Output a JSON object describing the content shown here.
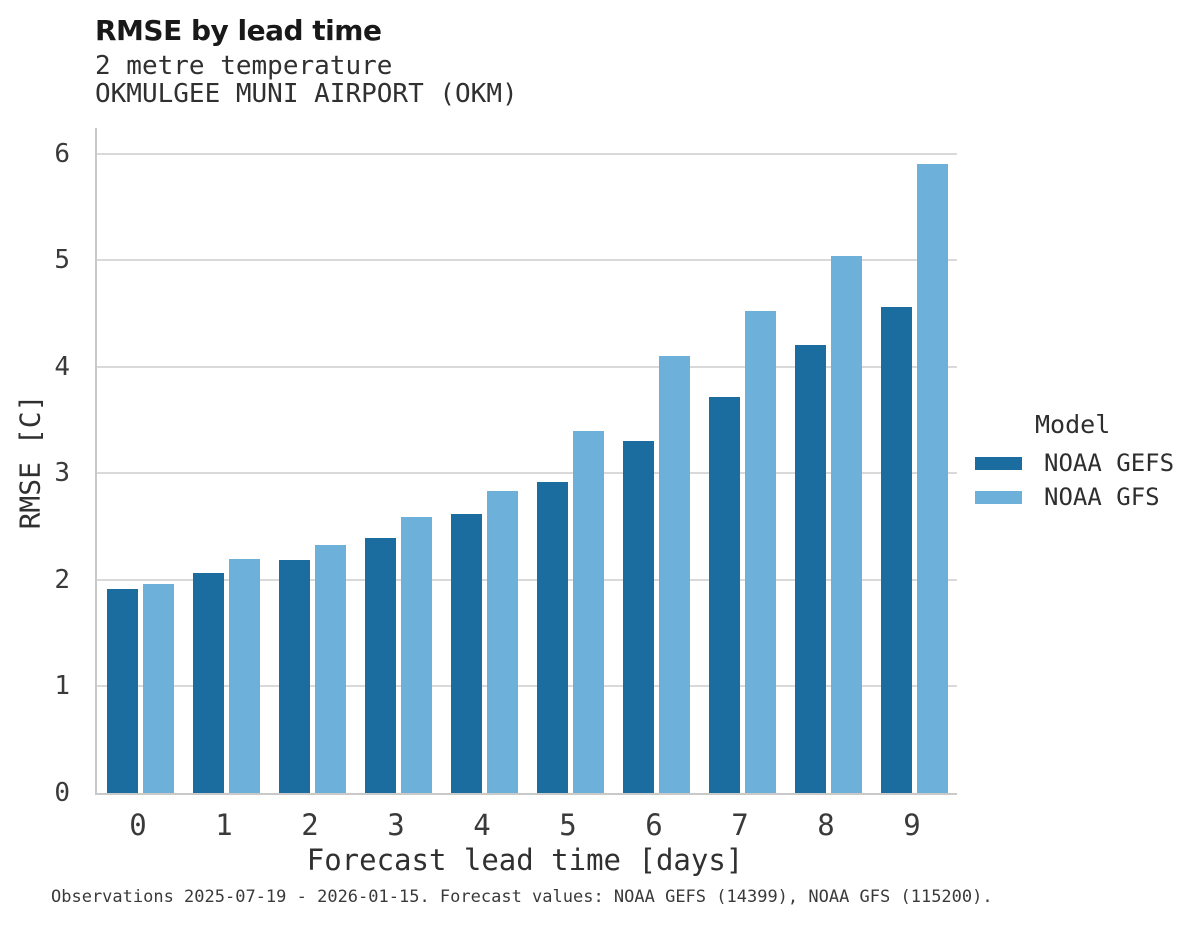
{
  "chart_data": {
    "type": "bar",
    "title": "RMSE by lead time",
    "subtitle1": "2 metre temperature",
    "subtitle2": "OKMULGEE MUNI AIRPORT (OKM)",
    "xlabel": "Forecast lead time [days]",
    "ylabel": "RMSE [C]",
    "legend_title": "Model",
    "legend_position": "right",
    "grid": "horizontal",
    "categories": [
      "0",
      "1",
      "2",
      "3",
      "4",
      "5",
      "6",
      "7",
      "8",
      "9"
    ],
    "yticks": [
      0,
      1,
      2,
      3,
      4,
      5,
      6
    ],
    "ylim": [
      0,
      6.24
    ],
    "series": [
      {
        "name": "NOAA GEFS",
        "color": "#1a6d9e",
        "values": [
          1.91,
          2.06,
          2.19,
          2.39,
          2.62,
          2.92,
          3.3,
          3.72,
          4.2,
          4.56
        ]
      },
      {
        "name": "NOAA GFS",
        "color": "#6db1da",
        "values": [
          1.96,
          2.2,
          2.33,
          2.59,
          2.83,
          3.4,
          4.1,
          4.52,
          5.04,
          5.9
        ]
      }
    ],
    "caption": "Observations 2025-07-19 - 2026-01-15. Forecast values: NOAA GEFS (14399), NOAA GFS (115200)."
  },
  "colors": {
    "series_dark": "#1a6d9e",
    "series_light": "#6db1da",
    "gridline": "#d9d9d9",
    "spine": "#c9c9c9",
    "text": "#2e2e2e"
  }
}
